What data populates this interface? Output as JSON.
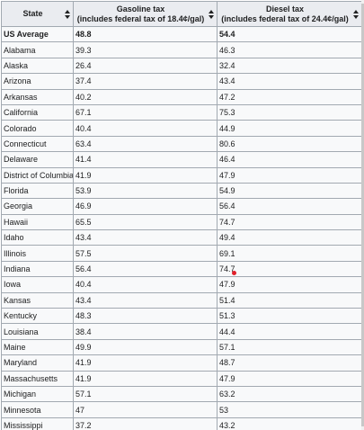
{
  "table": {
    "headers": {
      "state": "State",
      "gasoline_line1": "Gasoline tax",
      "gasoline_line2": "(includes federal tax of 18.4¢/gal)",
      "diesel_line1": "Diesel tax",
      "diesel_line2": "(includes federal tax of 24.4¢/gal)"
    },
    "rows": [
      {
        "state": "US Average",
        "gasoline": "48.8",
        "diesel": "54.4"
      },
      {
        "state": "Alabama",
        "gasoline": "39.3",
        "diesel": "46.3"
      },
      {
        "state": "Alaska",
        "gasoline": "26.4",
        "diesel": "32.4"
      },
      {
        "state": "Arizona",
        "gasoline": "37.4",
        "diesel": "43.4"
      },
      {
        "state": "Arkansas",
        "gasoline": "40.2",
        "diesel": "47.2"
      },
      {
        "state": "California",
        "gasoline": "67.1",
        "diesel": "75.3"
      },
      {
        "state": "Colorado",
        "gasoline": "40.4",
        "diesel": "44.9"
      },
      {
        "state": "Connecticut",
        "gasoline": "63.4",
        "diesel": "80.6"
      },
      {
        "state": "Delaware",
        "gasoline": "41.4",
        "diesel": "46.4"
      },
      {
        "state": "District of Columbia",
        "gasoline": "41.9",
        "diesel": "47.9"
      },
      {
        "state": "Florida",
        "gasoline": "53.9",
        "diesel": "54.9"
      },
      {
        "state": "Georgia",
        "gasoline": "46.9",
        "diesel": "56.4"
      },
      {
        "state": "Hawaii",
        "gasoline": "65.5",
        "diesel": "74.7"
      },
      {
        "state": "Idaho",
        "gasoline": "43.4",
        "diesel": "49.4"
      },
      {
        "state": "Illinois",
        "gasoline": "57.5",
        "diesel": "69.1"
      },
      {
        "state": "Indiana",
        "gasoline": "56.4",
        "diesel": "74.7"
      },
      {
        "state": "Iowa",
        "gasoline": "40.4",
        "diesel": "47.9"
      },
      {
        "state": "Kansas",
        "gasoline": "43.4",
        "diesel": "51.4"
      },
      {
        "state": "Kentucky",
        "gasoline": "48.3",
        "diesel": "51.3"
      },
      {
        "state": "Louisiana",
        "gasoline": "38.4",
        "diesel": "44.4"
      },
      {
        "state": "Maine",
        "gasoline": "49.9",
        "diesel": "57.1"
      },
      {
        "state": "Maryland",
        "gasoline": "41.9",
        "diesel": "48.7"
      },
      {
        "state": "Massachusetts",
        "gasoline": "41.9",
        "diesel": "47.9"
      },
      {
        "state": "Michigan",
        "gasoline": "57.1",
        "diesel": "63.2"
      },
      {
        "state": "Minnesota",
        "gasoline": "47",
        "diesel": "53"
      },
      {
        "state": "Mississippi",
        "gasoline": "37.2",
        "diesel": "43.2"
      }
    ]
  },
  "colors": {
    "header_bg": "#eaecf0",
    "cell_bg": "#f8f9fa",
    "border": "#a2a9b1",
    "marker": "#e0202a"
  }
}
